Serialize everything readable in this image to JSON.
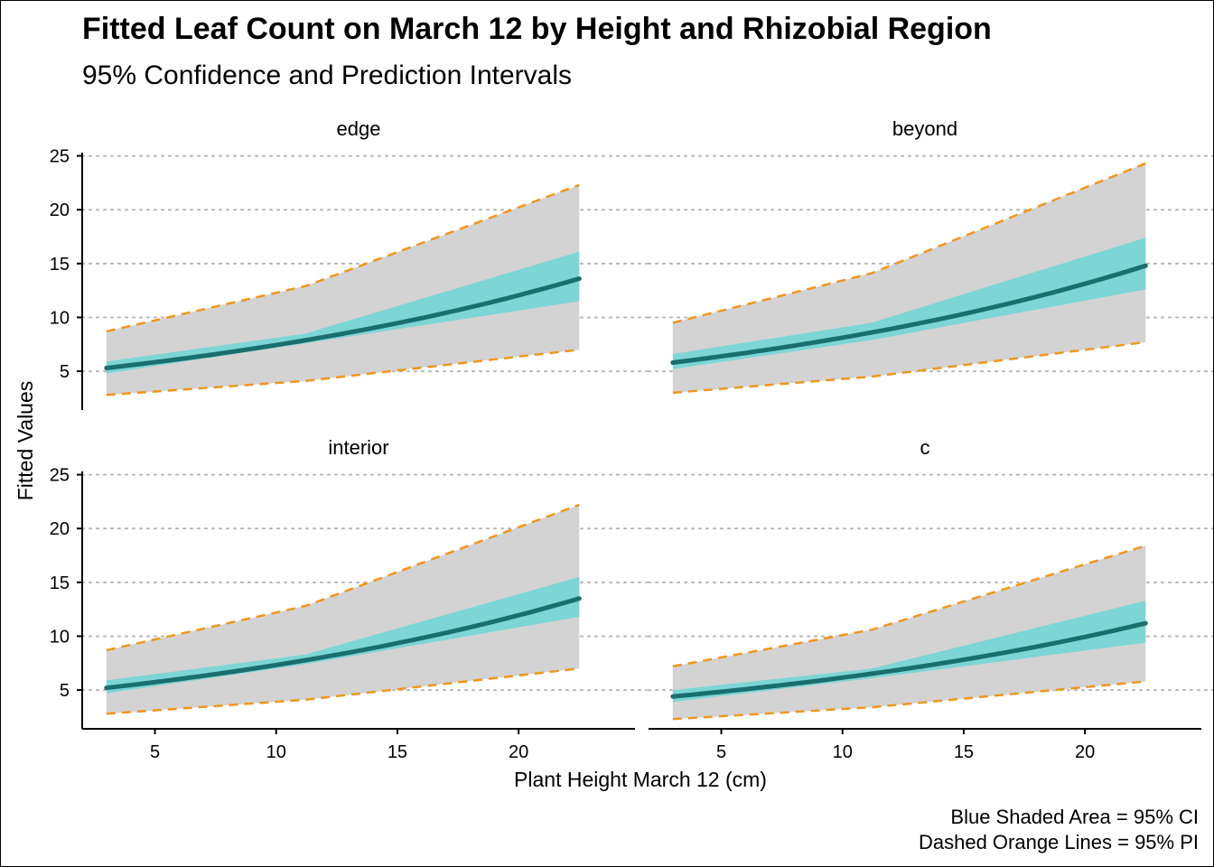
{
  "chart_data": {
    "type": "line",
    "title": "Fitted Leaf Count on March 12 by Height and Rhizobial Region",
    "subtitle": "95% Confidence and Prediction Intervals",
    "xlabel": "Plant Height March 12 (cm)",
    "ylabel": "Fitted Values",
    "caption": [
      "Blue Shaded Area = 95% CI",
      "Dashed Orange Lines = 95% PI"
    ],
    "xlim": [
      2.0,
      24.8
    ],
    "ylim": [
      1.4,
      25.3
    ],
    "x_ticks": [
      5,
      10,
      15,
      20
    ],
    "y_ticks": [
      5,
      10,
      15,
      20,
      25
    ],
    "grid": "horizontal dotted",
    "colors": {
      "fit_line": "#1a6e6e",
      "ci_fill": "#7dd5d5",
      "pi_fill": "#d3d3d3",
      "pi_line": "#f0961e",
      "grid": "#b3b3b3",
      "axis": "#000000"
    },
    "panels": [
      {
        "label": "edge",
        "x": [
          3,
          11.2,
          22.5
        ],
        "fit": [
          5.3,
          7.9,
          13.6
        ],
        "ci_lower": [
          4.8,
          7.6,
          11.5
        ],
        "ci_upper": [
          5.9,
          8.5,
          16.1
        ],
        "pi_lower": [
          2.8,
          4.1,
          7.0
        ],
        "pi_upper": [
          8.7,
          12.9,
          22.3
        ]
      },
      {
        "label": "beyond",
        "x": [
          3,
          11.2,
          22.5
        ],
        "fit": [
          5.8,
          8.6,
          14.8
        ],
        "ci_lower": [
          5.2,
          7.9,
          12.6
        ],
        "ci_upper": [
          6.6,
          9.5,
          17.4
        ],
        "pi_lower": [
          3.0,
          4.5,
          7.7
        ],
        "pi_upper": [
          9.5,
          14.1,
          24.3
        ]
      },
      {
        "label": "interior",
        "x": [
          3,
          11.2,
          22.5
        ],
        "fit": [
          5.2,
          7.8,
          13.5
        ],
        "ci_lower": [
          4.7,
          7.4,
          11.8
        ],
        "ci_upper": [
          5.9,
          8.3,
          15.5
        ],
        "pi_lower": [
          2.8,
          4.1,
          7.0
        ],
        "pi_upper": [
          8.7,
          12.8,
          22.2
        ]
      },
      {
        "label": "c",
        "x": [
          3,
          11.2,
          22.5
        ],
        "fit": [
          4.4,
          6.4,
          11.2
        ],
        "ci_lower": [
          3.9,
          6.1,
          9.4
        ],
        "ci_upper": [
          5.0,
          7.0,
          13.3
        ],
        "pi_lower": [
          2.3,
          3.4,
          5.8
        ],
        "pi_upper": [
          7.2,
          10.6,
          18.4
        ]
      }
    ]
  }
}
